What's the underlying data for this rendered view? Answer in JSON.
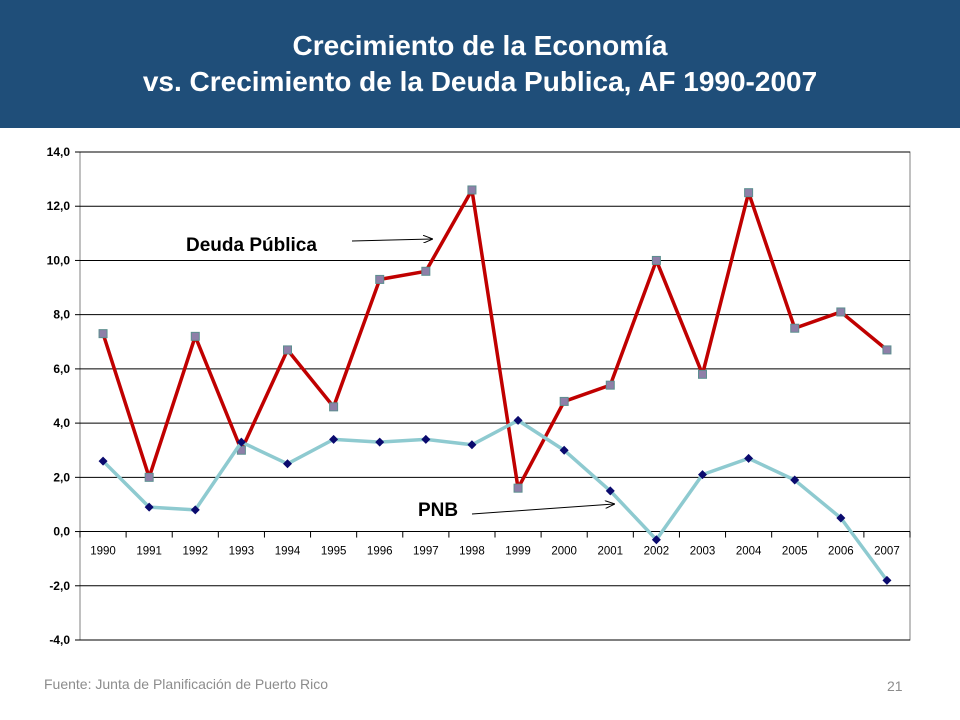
{
  "header": {
    "title_line1": "Crecimiento de la Economía",
    "title_line2": "vs. Crecimiento de la Deuda Publica, AF 1990-2007",
    "background_color": "#1f4e79"
  },
  "footer": {
    "source": "Fuente: Junta de Planificación de Puerto Rico",
    "page_number": "21"
  },
  "chart_data": {
    "type": "line",
    "x": [
      "1990",
      "1991",
      "1992",
      "1993",
      "1994",
      "1995",
      "1996",
      "1997",
      "1998",
      "1999",
      "2000",
      "2001",
      "2002",
      "2003",
      "2004",
      "2005",
      "2006",
      "2007"
    ],
    "ylim": [
      -4,
      14
    ],
    "yticks": [
      "14,0",
      "12,0",
      "10,0",
      "8,0",
      "6,0",
      "4,0",
      "2,0",
      "0,0",
      "-2,0",
      "-4,0"
    ],
    "ytick_values": [
      14,
      12,
      10,
      8,
      6,
      4,
      2,
      0,
      -2,
      -4
    ],
    "grid": "horizontal",
    "series": [
      {
        "name": "Deuda  Pública",
        "color": "#c00000",
        "marker": "square",
        "marker_color": "#8e7fa8",
        "values": [
          7.3,
          2.0,
          7.2,
          3.0,
          6.7,
          4.6,
          9.3,
          9.6,
          12.6,
          1.6,
          4.8,
          5.4,
          10.0,
          5.8,
          12.5,
          7.5,
          8.1,
          6.7
        ]
      },
      {
        "name": "PNB",
        "color": "#8ecad0",
        "marker": "diamond",
        "marker_color": "#0a0a6e",
        "values": [
          2.6,
          0.9,
          0.8,
          3.3,
          2.5,
          3.4,
          3.3,
          3.4,
          3.2,
          4.1,
          3.0,
          1.5,
          -0.3,
          2.1,
          2.7,
          1.9,
          0.5,
          -1.8
        ]
      }
    ]
  }
}
